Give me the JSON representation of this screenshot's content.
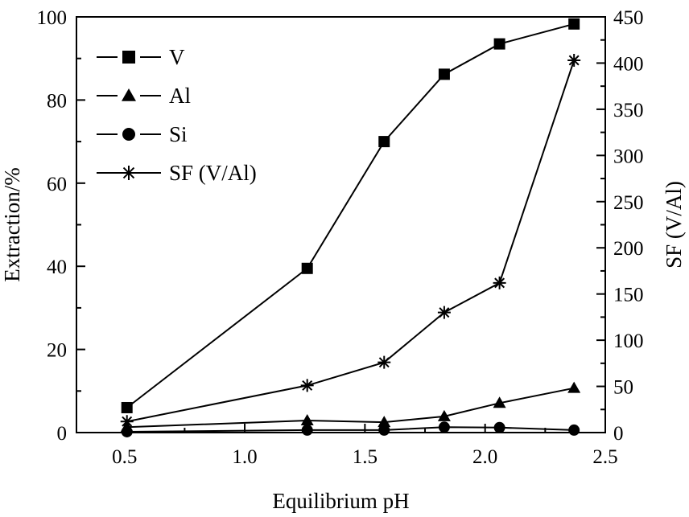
{
  "chart_data": {
    "type": "line",
    "xlabel": "Equilibrium pH",
    "ylabel": "Extraction/%",
    "y2label": "SF (V/Al)",
    "xlim": [
      0.3,
      2.5
    ],
    "ylim": [
      0,
      100
    ],
    "y2lim": [
      0,
      450
    ],
    "x_ticks": [
      "0.5",
      "1.0",
      "1.5",
      "2.0",
      "2.5"
    ],
    "y_ticks": [
      "0",
      "20",
      "40",
      "60",
      "80",
      "100"
    ],
    "y2_ticks": [
      "0",
      "50",
      "100",
      "150",
      "200",
      "250",
      "300",
      "350",
      "400",
      "450"
    ],
    "legend_position": "top-left",
    "series": [
      {
        "name": "V",
        "axis": "left",
        "marker": "square",
        "x": [
          0.51,
          1.26,
          1.58,
          1.83,
          2.06,
          2.37
        ],
        "y": [
          6.0,
          39.5,
          70.0,
          86.2,
          93.5,
          98.3
        ]
      },
      {
        "name": "Al",
        "axis": "left",
        "marker": "triangle",
        "x": [
          0.51,
          1.26,
          1.58,
          1.83,
          2.06,
          2.37
        ],
        "y": [
          1.3,
          2.9,
          2.5,
          3.9,
          7.1,
          10.7
        ]
      },
      {
        "name": "Si",
        "axis": "left",
        "marker": "circle",
        "x": [
          0.51,
          1.26,
          1.58,
          1.83,
          2.06,
          2.37
        ],
        "y": [
          0.2,
          0.6,
          0.6,
          1.3,
          1.2,
          0.6
        ]
      },
      {
        "name": "SF (V/Al)",
        "axis": "right",
        "marker": "star",
        "x": [
          0.51,
          1.26,
          1.58,
          1.83,
          2.06,
          2.37
        ],
        "y": [
          12,
          51,
          76,
          130,
          162,
          403
        ]
      }
    ]
  }
}
